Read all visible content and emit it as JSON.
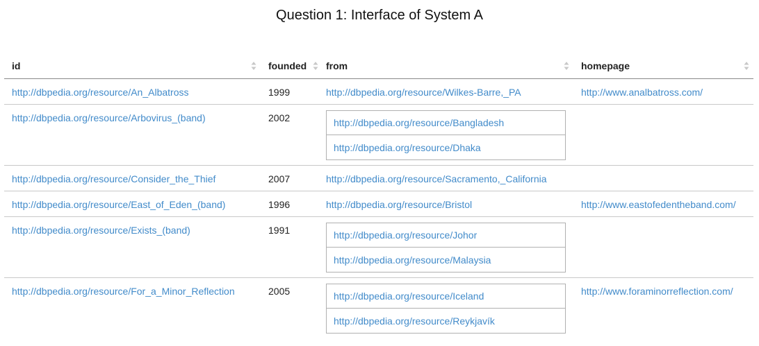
{
  "title": "Question 1: Interface of System A",
  "columns": [
    {
      "label": "id"
    },
    {
      "label": "founded"
    },
    {
      "label": "from"
    },
    {
      "label": "homepage"
    }
  ],
  "rows": [
    {
      "id": "http://dbpedia.org/resource/An_Albatross",
      "founded": "1999",
      "from": [
        "http://dbpedia.org/resource/Wilkes-Barre,_PA"
      ],
      "homepage": "http://www.analbatross.com/"
    },
    {
      "id": "http://dbpedia.org/resource/Arbovirus_(band)",
      "founded": "2002",
      "from": [
        "http://dbpedia.org/resource/Bangladesh",
        "http://dbpedia.org/resource/Dhaka"
      ],
      "homepage": ""
    },
    {
      "id": "http://dbpedia.org/resource/Consider_the_Thief",
      "founded": "2007",
      "from": [
        "http://dbpedia.org/resource/Sacramento,_California"
      ],
      "homepage": ""
    },
    {
      "id": "http://dbpedia.org/resource/East_of_Eden_(band)",
      "founded": "1996",
      "from": [
        "http://dbpedia.org/resource/Bristol"
      ],
      "homepage": "http://www.eastofedentheband.com/"
    },
    {
      "id": "http://dbpedia.org/resource/Exists_(band)",
      "founded": "1991",
      "from": [
        "http://dbpedia.org/resource/Johor",
        "http://dbpedia.org/resource/Malaysia"
      ],
      "homepage": ""
    },
    {
      "id": "http://dbpedia.org/resource/For_a_Minor_Reflection",
      "founded": "2005",
      "from": [
        "http://dbpedia.org/resource/Iceland",
        "http://dbpedia.org/resource/Reykjavík"
      ],
      "homepage": "http://www.foraminorreflection.com/"
    }
  ],
  "colors": {
    "link": "#428bca",
    "text": "#333333",
    "sort_icon": "#c8c8c8"
  },
  "icons": {
    "sort": "sort-both-icon"
  }
}
